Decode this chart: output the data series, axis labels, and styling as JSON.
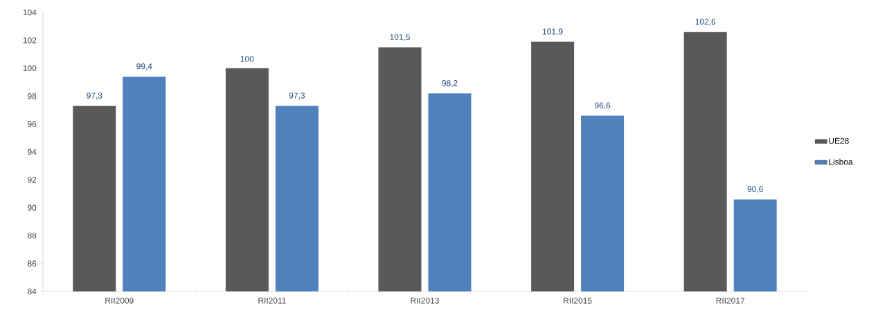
{
  "chart_data": {
    "type": "bar",
    "categories": [
      "RII2009",
      "RII2011",
      "RII2013",
      "RII2015",
      "RII2017"
    ],
    "series": [
      {
        "name": "UE28",
        "color": "#595959",
        "values": [
          97.3,
          100,
          101.5,
          101.9,
          102.6
        ],
        "value_labels": [
          "97,3",
          "100",
          "101,5",
          "101,9",
          "102,6"
        ]
      },
      {
        "name": "Lisboa",
        "color": "#4f81bd",
        "values": [
          99.4,
          97.3,
          98.2,
          96.6,
          90.6
        ],
        "value_labels": [
          "99,4",
          "97,3",
          "98,2",
          "96,6",
          "90,6"
        ]
      }
    ],
    "ylim": [
      84,
      104
    ],
    "yticks": [
      84,
      86,
      88,
      90,
      92,
      94,
      96,
      98,
      100,
      102,
      104
    ],
    "grid": false,
    "legend": "right"
  }
}
